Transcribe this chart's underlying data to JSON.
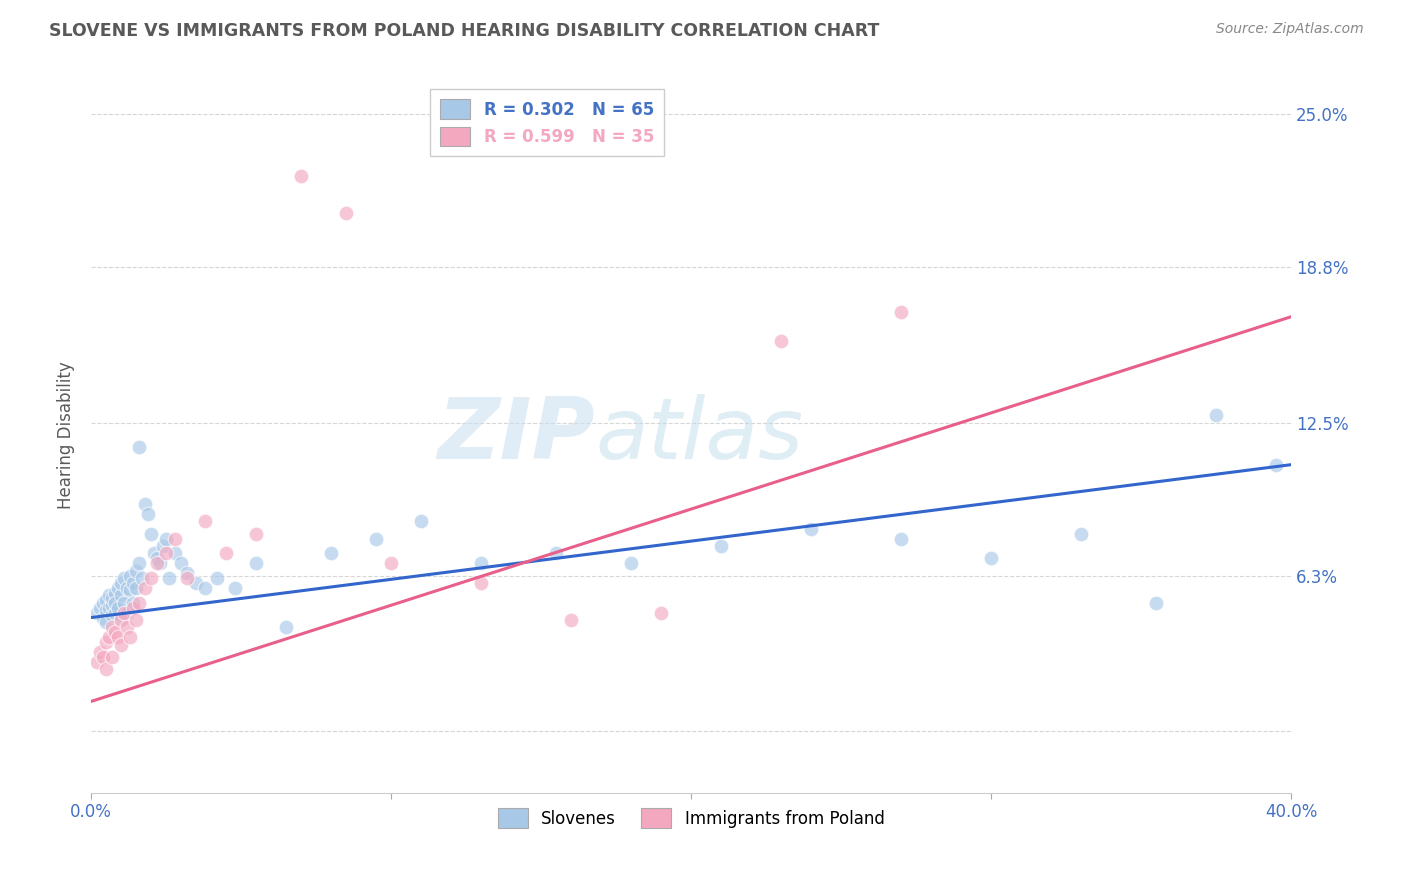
{
  "title": "SLOVENE VS IMMIGRANTS FROM POLAND HEARING DISABILITY CORRELATION CHART",
  "source": "Source: ZipAtlas.com",
  "ylabel": "Hearing Disability",
  "blue_R": 0.302,
  "blue_N": 65,
  "pink_R": 0.599,
  "pink_N": 35,
  "blue_color": "#a8c8e8",
  "pink_color": "#f4a8c0",
  "blue_line_color": "#3366cc",
  "pink_line_color": "#e8608a",
  "legend_label_blue": "Slovenes",
  "legend_label_pink": "Immigrants from Poland",
  "watermark_zip": "ZIP",
  "watermark_atlas": "atlas",
  "blue_scatter_x": [
    0.002,
    0.003,
    0.004,
    0.004,
    0.005,
    0.005,
    0.005,
    0.006,
    0.006,
    0.007,
    0.007,
    0.007,
    0.008,
    0.008,
    0.008,
    0.009,
    0.009,
    0.01,
    0.01,
    0.01,
    0.011,
    0.011,
    0.012,
    0.012,
    0.013,
    0.013,
    0.014,
    0.014,
    0.015,
    0.015,
    0.016,
    0.016,
    0.017,
    0.018,
    0.019,
    0.02,
    0.021,
    0.022,
    0.023,
    0.024,
    0.025,
    0.026,
    0.028,
    0.03,
    0.032,
    0.035,
    0.038,
    0.042,
    0.048,
    0.055,
    0.065,
    0.08,
    0.095,
    0.11,
    0.13,
    0.155,
    0.18,
    0.21,
    0.24,
    0.27,
    0.3,
    0.33,
    0.355,
    0.375,
    0.395
  ],
  "blue_scatter_y": [
    0.048,
    0.05,
    0.046,
    0.052,
    0.044,
    0.049,
    0.053,
    0.05,
    0.055,
    0.047,
    0.051,
    0.054,
    0.048,
    0.056,
    0.052,
    0.058,
    0.05,
    0.055,
    0.046,
    0.06,
    0.062,
    0.052,
    0.058,
    0.048,
    0.063,
    0.057,
    0.06,
    0.052,
    0.058,
    0.065,
    0.115,
    0.068,
    0.062,
    0.092,
    0.088,
    0.08,
    0.072,
    0.07,
    0.068,
    0.075,
    0.078,
    0.062,
    0.072,
    0.068,
    0.064,
    0.06,
    0.058,
    0.062,
    0.058,
    0.068,
    0.042,
    0.072,
    0.078,
    0.085,
    0.068,
    0.072,
    0.068,
    0.075,
    0.082,
    0.078,
    0.07,
    0.08,
    0.052,
    0.128,
    0.108
  ],
  "pink_scatter_x": [
    0.002,
    0.003,
    0.004,
    0.005,
    0.005,
    0.006,
    0.007,
    0.007,
    0.008,
    0.009,
    0.01,
    0.01,
    0.011,
    0.012,
    0.013,
    0.014,
    0.015,
    0.016,
    0.018,
    0.02,
    0.022,
    0.025,
    0.028,
    0.032,
    0.038,
    0.045,
    0.055,
    0.07,
    0.085,
    0.1,
    0.13,
    0.16,
    0.19,
    0.23,
    0.27
  ],
  "pink_scatter_y": [
    0.028,
    0.032,
    0.03,
    0.036,
    0.025,
    0.038,
    0.042,
    0.03,
    0.04,
    0.038,
    0.045,
    0.035,
    0.048,
    0.042,
    0.038,
    0.05,
    0.045,
    0.052,
    0.058,
    0.062,
    0.068,
    0.072,
    0.078,
    0.062,
    0.085,
    0.072,
    0.08,
    0.225,
    0.21,
    0.068,
    0.06,
    0.045,
    0.048,
    0.158,
    0.17
  ],
  "blue_line_x": [
    0.0,
    0.4
  ],
  "blue_line_y": [
    0.046,
    0.108
  ],
  "pink_line_x": [
    0.0,
    0.4
  ],
  "pink_line_y": [
    0.012,
    0.168
  ],
  "xlim": [
    0.0,
    0.4
  ],
  "ylim": [
    -0.025,
    0.265
  ],
  "ytick_vals": [
    0.0,
    0.063,
    0.125,
    0.188,
    0.25
  ],
  "ytick_labels": [
    "",
    "6.3%",
    "12.5%",
    "18.8%",
    "25.0%"
  ],
  "background_color": "#ffffff",
  "grid_color": "#cccccc",
  "axis_color": "#4472c4",
  "title_color": "#595959",
  "right_label_color": "#4472c4"
}
